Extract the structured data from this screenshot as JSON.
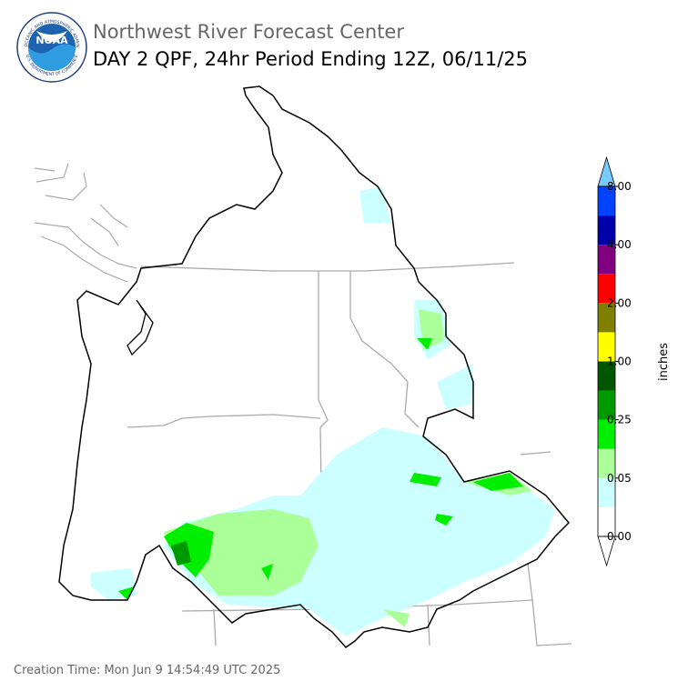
{
  "header": {
    "title": "Northwest River Forecast Center",
    "subtitle": "DAY 2 QPF, 24hr Period Ending 12Z, 06/11/25"
  },
  "logo": {
    "text": "NOAA",
    "ring_top": "NATIONAL OCEANIC AND ATMOSPHERIC ADMINISTRATION",
    "ring_bottom": "U.S. DEPARTMENT OF COMMERCE"
  },
  "colorbar": {
    "label": "inches",
    "ticks": [
      "0.00",
      "0.05",
      "0.25",
      "1.00",
      "2.00",
      "4.00",
      "8.00"
    ],
    "colors": [
      "#ffffff",
      "#ccffff",
      "#aaff99",
      "#00ee00",
      "#009900",
      "#005500",
      "#ffff00",
      "#808000",
      "#ff0000",
      "#800080",
      "#0000aa",
      "#0044ff"
    ],
    "over_color": "#77ccff",
    "under_color": "#ffffff"
  },
  "footer": {
    "creation_time": "Creation Time: Mon Jun 9 14:54:49 UTC 2025"
  }
}
